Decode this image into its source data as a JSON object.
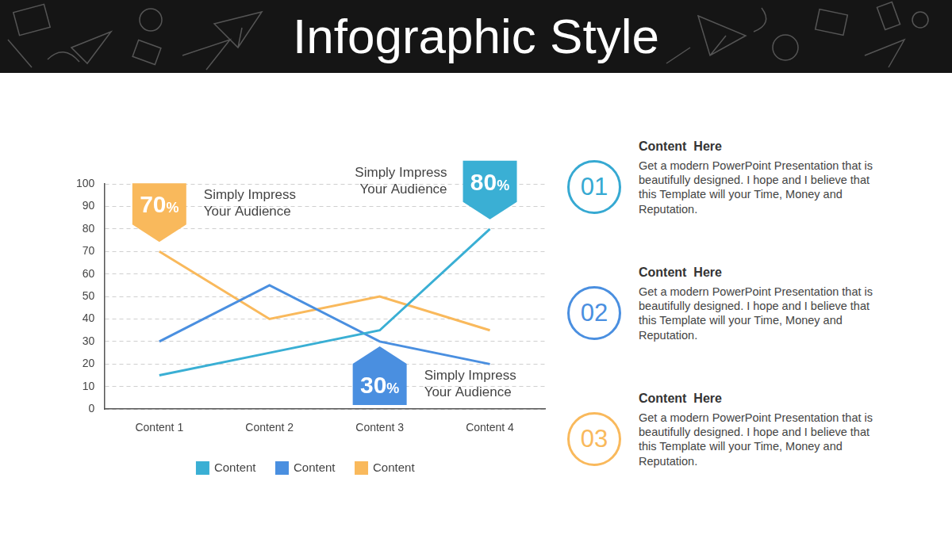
{
  "header": {
    "title": "Infographic Style"
  },
  "chart_data": {
    "type": "line",
    "categories": [
      "Content 1",
      "Content 2",
      "Content 3",
      "Content 4"
    ],
    "series": [
      {
        "name": "Content",
        "color": "#3aafd4",
        "values": [
          15,
          25,
          35,
          80
        ]
      },
      {
        "name": "Content",
        "color": "#4a8fe0",
        "values": [
          30,
          55,
          30,
          20
        ]
      },
      {
        "name": "Content",
        "color": "#f9b95c",
        "values": [
          70,
          40,
          50,
          35
        ]
      }
    ],
    "ylim": [
      0,
      100
    ],
    "yticks": [
      0,
      10,
      20,
      30,
      40,
      50,
      60,
      70,
      80,
      90,
      100
    ],
    "grid": true,
    "legend": "bottom",
    "annotations": [
      {
        "label": "70%",
        "value": 70,
        "category": "Content 1",
        "color": "#f9b95c",
        "text": [
          "Simply Impress",
          "Your Audience"
        ]
      },
      {
        "label": "80%",
        "value": 80,
        "category": "Content 4",
        "color": "#3aafd4",
        "text": [
          "Simply Impress",
          "Your Audience"
        ]
      },
      {
        "label": "30%",
        "value": 30,
        "category": "Content 3",
        "color": "#4a8fe0",
        "text": [
          "Simply Impress",
          "Your Audience"
        ]
      }
    ]
  },
  "items": [
    {
      "number": "01",
      "color": "#36a9d2",
      "title": "Content  Here",
      "text": "Get a modern PowerPoint  Presentation that is beautifully designed. I hope and I believe that this Template will your Time, Money and Reputation."
    },
    {
      "number": "02",
      "color": "#4a8fe0",
      "title": "Content  Here",
      "text": "Get a modern PowerPoint  Presentation that is beautifully designed. I hope and I believe that this Template will your Time, Money and Reputation."
    },
    {
      "number": "03",
      "color": "#f9b95c",
      "title": "Content  Here",
      "text": "Get a modern PowerPoint  Presentation that is beautifully designed. I hope and I believe that this Template will your Time, Money and Reputation."
    }
  ]
}
